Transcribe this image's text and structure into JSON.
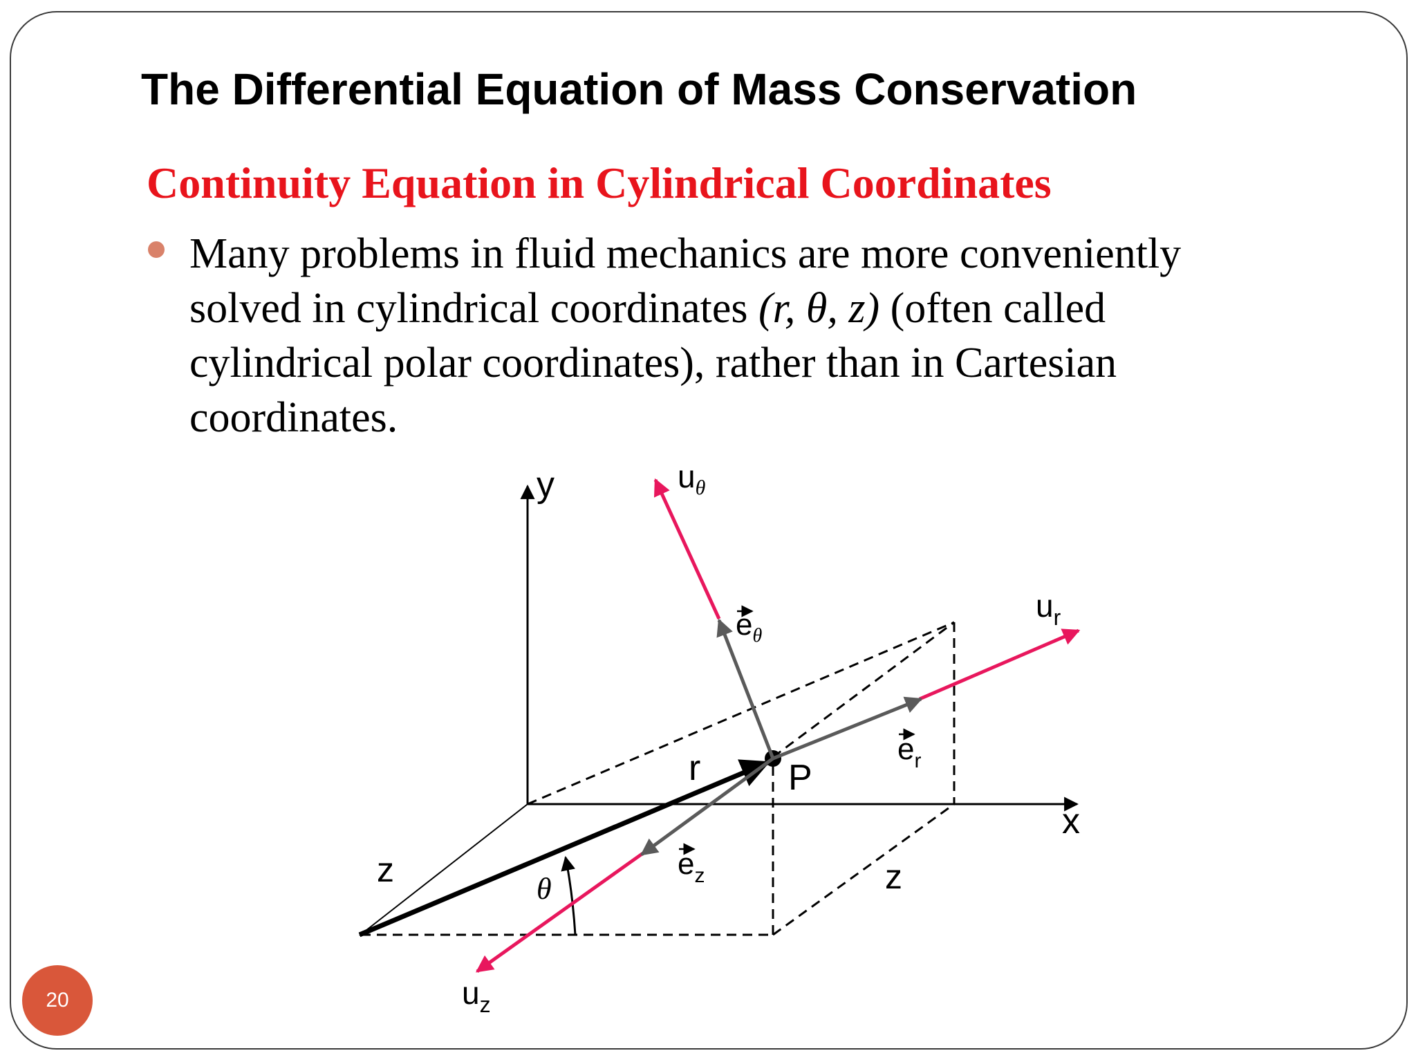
{
  "slide": {
    "title": "The Differential Equation of Mass Conservation",
    "subtitle": "Continuity Equation in Cylindrical Coordinates",
    "bullet": {
      "line1": "Many problems in fluid mechanics are more conveniently",
      "line2_a": "solved in cylindrical coordinates ",
      "line2_italic": "(r, θ, z)",
      "line2_b": " (often called",
      "line3": "cylindrical polar coordinates), rather than in Cartesian",
      "line4": "coordinates."
    },
    "page_number": "20"
  },
  "diagram": {
    "labels": {
      "y_axis": "y",
      "x_axis": "x",
      "z_axis": "z",
      "z_depth": "z",
      "r": "r",
      "point": "P",
      "theta": "θ",
      "u_theta_main": "u",
      "u_theta_sub": "θ",
      "u_r_main": "u",
      "u_r_sub": "r",
      "u_z_main": "u",
      "u_z_sub": "z",
      "e_theta_main": "e",
      "e_theta_sub": "θ",
      "e_r_main": "e",
      "e_r_sub": "r",
      "e_z_main": "e",
      "e_z_sub": "z"
    }
  },
  "colors": {
    "subtitle": "#e8141c",
    "bullet_dot": "#d9826a",
    "badge": "#d9573a",
    "vector_magenta": "#e8175d",
    "unit_vector_gray": "#5a5a5a",
    "axis_black": "#000000"
  }
}
